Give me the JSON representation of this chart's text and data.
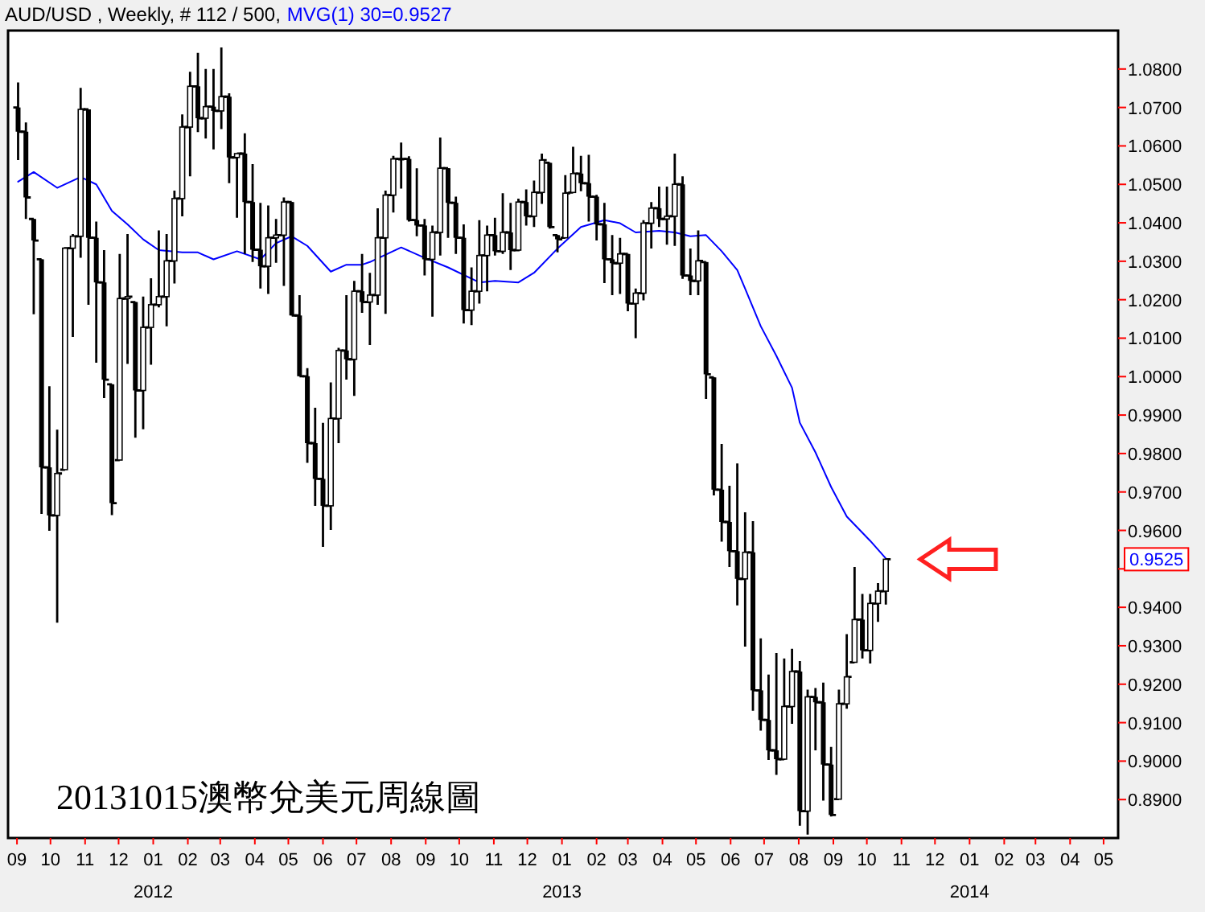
{
  "chart_data": {
    "type": "candlestick",
    "title": "AUD/USD , Weekly, # 112 / 500,",
    "legend": "top left",
    "xlim": [
      "2011-08-24",
      "2014-05-14"
    ],
    "ylim": [
      0.88,
      1.09
    ],
    "xticks": [
      {
        "value": "2011-09",
        "label": "09"
      },
      {
        "value": "2011-10",
        "label": "10"
      },
      {
        "value": "2011-11",
        "label": "11"
      },
      {
        "value": "2011-12",
        "label": "12"
      },
      {
        "value": "2012-01",
        "label": "01"
      },
      {
        "value": "2012-02",
        "label": "02"
      },
      {
        "value": "2012-03",
        "label": "03"
      },
      {
        "value": "2012-04",
        "label": "04"
      },
      {
        "value": "2012-05",
        "label": "05"
      },
      {
        "value": "2012-06",
        "label": "06"
      },
      {
        "value": "2012-07",
        "label": "07"
      },
      {
        "value": "2012-08",
        "label": "08"
      },
      {
        "value": "2012-09",
        "label": "09"
      },
      {
        "value": "2012-10",
        "label": "10"
      },
      {
        "value": "2012-11",
        "label": "11"
      },
      {
        "value": "2012-12",
        "label": "12"
      },
      {
        "value": "2013-01",
        "label": "01"
      },
      {
        "value": "2013-02",
        "label": "02"
      },
      {
        "value": "2013-03",
        "label": "03"
      },
      {
        "value": "2013-04",
        "label": "04"
      },
      {
        "value": "2013-05",
        "label": "05"
      },
      {
        "value": "2013-06",
        "label": "06"
      },
      {
        "value": "2013-07",
        "label": "07"
      },
      {
        "value": "2013-08",
        "label": "08"
      },
      {
        "value": "2013-09",
        "label": "09"
      },
      {
        "value": "2013-10",
        "label": "10"
      },
      {
        "value": "2013-11",
        "label": "11"
      },
      {
        "value": "2013-12",
        "label": "12"
      },
      {
        "value": "2014-01",
        "label": "01"
      },
      {
        "value": "2014-02",
        "label": "02"
      },
      {
        "value": "2014-03",
        "label": "03"
      },
      {
        "value": "2014-04",
        "label": "04"
      },
      {
        "value": "2014-05",
        "label": "05"
      }
    ],
    "yticks": [
      {
        "value": 0.89,
        "label": "0.8900"
      },
      {
        "value": 0.9,
        "label": "0.9000"
      },
      {
        "value": 0.91,
        "label": "0.9100"
      },
      {
        "value": 0.92,
        "label": "0.9200"
      },
      {
        "value": 0.93,
        "label": "0.9300"
      },
      {
        "value": 0.94,
        "label": "0.9400"
      },
      {
        "value": 0.95,
        "label": null
      },
      {
        "value": 0.96,
        "label": "0.9600"
      },
      {
        "value": 0.97,
        "label": "0.9700"
      },
      {
        "value": 0.98,
        "label": "0.9800"
      },
      {
        "value": 0.99,
        "label": "0.9900"
      },
      {
        "value": 1.0,
        "label": "1.0000"
      },
      {
        "value": 1.01,
        "label": "1.0100"
      },
      {
        "value": 1.02,
        "label": "1.0200"
      },
      {
        "value": 1.03,
        "label": "1.0300"
      },
      {
        "value": 1.04,
        "label": "1.0400"
      },
      {
        "value": 1.05,
        "label": "1.0500"
      },
      {
        "value": 1.06,
        "label": "1.0600"
      },
      {
        "value": 1.07,
        "label": "1.0700"
      },
      {
        "value": 1.08,
        "label": "1.0800"
      }
    ],
    "annotations": [
      "20131015澳幣兌美元周線圖",
      "0.9525",
      "2012",
      "2013",
      "2014"
    ],
    "color": "#000000",
    "x": [
      "2011-09-02",
      "2011-09-09",
      "2011-09-16",
      "2011-09-23",
      "2011-09-30",
      "2011-10-07",
      "2011-10-14",
      "2011-10-21",
      "2011-10-28",
      "2011-11-04",
      "2011-11-11",
      "2011-11-18",
      "2011-11-25",
      "2011-12-02",
      "2011-12-09",
      "2011-12-16",
      "2011-12-23",
      "2011-12-30",
      "2012-01-06",
      "2012-01-13",
      "2012-01-20",
      "2012-01-27",
      "2012-02-03",
      "2012-02-10",
      "2012-02-17",
      "2012-02-24",
      "2012-03-02",
      "2012-03-09",
      "2012-03-16",
      "2012-03-23",
      "2012-03-30",
      "2012-04-06",
      "2012-04-13",
      "2012-04-20",
      "2012-04-27",
      "2012-05-04",
      "2012-05-11",
      "2012-05-18",
      "2012-05-25",
      "2012-06-01",
      "2012-06-08",
      "2012-06-15",
      "2012-06-22",
      "2012-06-29",
      "2012-07-06",
      "2012-07-13",
      "2012-07-20",
      "2012-07-27",
      "2012-08-03",
      "2012-08-10",
      "2012-08-17",
      "2012-08-24",
      "2012-08-31",
      "2012-09-07",
      "2012-09-14",
      "2012-09-21",
      "2012-09-28",
      "2012-10-05",
      "2012-10-12",
      "2012-10-19",
      "2012-10-26",
      "2012-11-02",
      "2012-11-09",
      "2012-11-16",
      "2012-11-23",
      "2012-11-30",
      "2012-12-07",
      "2012-12-14",
      "2012-12-21",
      "2012-12-28",
      "2013-01-04",
      "2013-01-11",
      "2013-01-18",
      "2013-01-25",
      "2013-02-01",
      "2013-02-08",
      "2013-02-15",
      "2013-02-22",
      "2013-03-01",
      "2013-03-08",
      "2013-03-15",
      "2013-03-22",
      "2013-03-29",
      "2013-04-05",
      "2013-04-12",
      "2013-04-19",
      "2013-04-26",
      "2013-05-03",
      "2013-05-10",
      "2013-05-17",
      "2013-05-24",
      "2013-05-31",
      "2013-06-07",
      "2013-06-14",
      "2013-06-21",
      "2013-06-28",
      "2013-07-05",
      "2013-07-12",
      "2013-07-19",
      "2013-07-26",
      "2013-08-02",
      "2013-08-09",
      "2013-08-16",
      "2013-08-23",
      "2013-08-30",
      "2013-09-06",
      "2013-09-13",
      "2013-09-20",
      "2013-09-27",
      "2013-10-04",
      "2013-10-11",
      "2013-10-18"
    ],
    "ohlc": [
      [
        1.07,
        1.0765,
        1.0563,
        1.0637
      ],
      [
        1.0637,
        1.0661,
        1.041,
        1.0466
      ],
      [
        1.041,
        1.041,
        1.0162,
        1.0354
      ],
      [
        1.0305,
        1.0305,
        0.9643,
        0.9764
      ],
      [
        0.9764,
        0.9975,
        0.9599,
        0.9639
      ],
      [
        0.9639,
        0.9862,
        0.936,
        0.9748
      ],
      [
        0.9758,
        1.0337,
        0.9758,
        1.0334
      ],
      [
        1.0334,
        1.0371,
        1.0103,
        1.0365
      ],
      [
        1.0365,
        1.0751,
        1.0309,
        1.0695
      ],
      [
        1.0695,
        1.0695,
        1.0187,
        1.0361
      ],
      [
        1.0361,
        1.0403,
        1.0036,
        1.0245
      ],
      [
        1.0245,
        1.0329,
        0.9944,
        0.9992
      ],
      [
        0.998,
        0.998,
        0.964,
        0.9671
      ],
      [
        0.9783,
        1.0319,
        0.9783,
        1.0203
      ],
      [
        1.0203,
        1.0371,
        1.0033,
        1.0208
      ],
      [
        1.0194,
        1.0194,
        0.9841,
        0.9964
      ],
      [
        0.9964,
        1.0208,
        0.9863,
        1.0128
      ],
      [
        1.0128,
        1.0256,
        1.0031,
        1.0187
      ],
      [
        1.0187,
        1.038,
        1.018,
        1.0208
      ],
      [
        1.0208,
        1.0371,
        1.0131,
        1.0301
      ],
      [
        1.0301,
        1.0484,
        1.0242,
        1.0463
      ],
      [
        1.0463,
        1.0682,
        1.0417,
        1.0649
      ],
      [
        1.0649,
        1.0793,
        1.0521,
        1.0755
      ],
      [
        1.0755,
        1.0842,
        1.0636,
        1.0672
      ],
      [
        1.0672,
        1.08,
        1.0619,
        1.0702
      ],
      [
        1.0702,
        1.08,
        1.0591,
        1.0691
      ],
      [
        1.0691,
        1.0856,
        1.0644,
        1.0728
      ],
      [
        1.0728,
        1.0737,
        1.0503,
        1.057
      ],
      [
        1.057,
        1.058,
        1.0413,
        1.058
      ],
      [
        1.058,
        1.0633,
        1.0319,
        1.0454
      ],
      [
        1.0454,
        1.0553,
        1.0298,
        1.033
      ],
      [
        1.033,
        1.0452,
        1.0229,
        1.0287
      ],
      [
        1.0287,
        1.0445,
        1.0215,
        1.0361
      ],
      [
        1.0361,
        1.041,
        1.0296,
        1.0368
      ],
      [
        1.0368,
        1.0466,
        1.0236,
        1.0454
      ],
      [
        1.0454,
        1.0454,
        1.0159,
        1.0159
      ],
      [
        1.0159,
        1.0212,
        1.0001,
        1.0001
      ],
      [
        1.0001,
        1.0022,
        0.9776,
        0.9827
      ],
      [
        0.9827,
        0.9919,
        0.9664,
        0.9734
      ],
      [
        0.9734,
        0.988,
        0.9557,
        0.9664
      ],
      [
        0.9664,
        0.9985,
        0.9601,
        0.9891
      ],
      [
        0.9891,
        1.0075,
        0.9827,
        1.0068
      ],
      [
        1.0068,
        1.0212,
        0.9992,
        1.0045
      ],
      [
        1.0045,
        1.0249,
        0.995,
        1.0222
      ],
      [
        1.0222,
        1.0319,
        1.0166,
        1.0194
      ],
      [
        1.0194,
        1.027,
        1.0082,
        1.0212
      ],
      [
        1.0212,
        1.0438,
        1.0187,
        1.0361
      ],
      [
        1.0361,
        1.0484,
        1.0163,
        1.0472
      ],
      [
        1.0472,
        1.0574,
        1.0427,
        1.0566
      ],
      [
        1.0566,
        1.0609,
        1.0489,
        1.0566
      ],
      [
        1.0566,
        1.0573,
        1.0403,
        1.0407
      ],
      [
        1.0407,
        1.0542,
        1.0365,
        1.0393
      ],
      [
        1.0393,
        1.041,
        1.0263,
        1.0305
      ],
      [
        1.0305,
        1.0393,
        1.0156,
        1.0375
      ],
      [
        1.0375,
        1.0622,
        1.0315,
        1.0542
      ],
      [
        1.0542,
        1.0542,
        1.0361,
        1.0452
      ],
      [
        1.0452,
        1.0468,
        1.0319,
        1.0361
      ],
      [
        1.0361,
        1.0396,
        1.0138,
        1.0173
      ],
      [
        1.0173,
        1.0284,
        1.0134,
        1.0222
      ],
      [
        1.0222,
        1.0407,
        1.019,
        1.0315
      ],
      [
        1.0315,
        1.0393,
        1.0222,
        1.0368
      ],
      [
        1.0368,
        1.0413,
        1.0315,
        1.0326
      ],
      [
        1.0326,
        1.0477,
        1.0319,
        1.0375
      ],
      [
        1.0375,
        1.0452,
        1.0277,
        1.0329
      ],
      [
        1.0329,
        1.0463,
        1.0326,
        1.0454
      ],
      [
        1.0454,
        1.0487,
        1.0393,
        1.0417
      ],
      [
        1.0417,
        1.051,
        1.0389,
        1.0479
      ],
      [
        1.0479,
        1.058,
        1.0449,
        1.0563
      ],
      [
        1.0556,
        1.0556,
        1.0385,
        1.0389
      ],
      [
        1.0368,
        1.0368,
        1.0323,
        1.0357
      ],
      [
        1.0361,
        1.0524,
        1.0361,
        1.0477
      ],
      [
        1.0479,
        1.0598,
        1.0479,
        1.0528
      ],
      [
        1.0528,
        1.0574,
        1.0482,
        1.0503
      ],
      [
        1.0503,
        1.0577,
        1.0403,
        1.0468
      ],
      [
        1.0468,
        1.0473,
        1.0354,
        1.0396
      ],
      [
        1.0396,
        1.0452,
        1.0243,
        1.0305
      ],
      [
        1.0305,
        1.0368,
        1.0212,
        1.0295
      ],
      [
        1.0295,
        1.0361,
        1.0215,
        1.0319
      ],
      [
        1.0319,
        1.0319,
        1.017,
        1.019
      ],
      [
        1.019,
        1.0229,
        1.01,
        1.0217
      ],
      [
        1.0217,
        1.0407,
        1.0198,
        1.0399
      ],
      [
        1.0399,
        1.0454,
        1.0333,
        1.0438
      ],
      [
        1.0438,
        1.0494,
        1.0389,
        1.041
      ],
      [
        1.041,
        1.0494,
        1.0343,
        1.0417
      ],
      [
        1.0417,
        1.058,
        1.034,
        1.05
      ],
      [
        1.05,
        1.0521,
        1.0254,
        1.0263
      ],
      [
        1.0263,
        1.0333,
        1.0212,
        1.0249
      ],
      [
        1.0249,
        1.038,
        1.0212,
        1.0301
      ],
      [
        1.0298,
        1.0298,
        0.9942,
        1.0006
      ],
      [
        0.9998,
        0.9998,
        0.9691,
        0.9706
      ],
      [
        0.9706,
        0.9825,
        0.9571,
        0.9622
      ],
      [
        0.9622,
        0.9716,
        0.9505,
        0.9546
      ],
      [
        0.9546,
        0.9774,
        0.9405,
        0.9474
      ],
      [
        0.9474,
        0.9647,
        0.9298,
        0.9543
      ],
      [
        0.9543,
        0.9624,
        0.9131,
        0.9184
      ],
      [
        0.9184,
        0.9319,
        0.9079,
        0.9107
      ],
      [
        0.9107,
        0.9225,
        0.9003,
        0.9028
      ],
      [
        0.9028,
        0.9281,
        0.8964,
        0.9005
      ],
      [
        0.9005,
        0.9267,
        0.9003,
        0.9142
      ],
      [
        0.9142,
        0.9292,
        0.9097,
        0.9233
      ],
      [
        0.9233,
        0.926,
        0.8832,
        0.887
      ],
      [
        0.887,
        0.9186,
        0.8809,
        0.9167
      ],
      [
        0.9167,
        0.919,
        0.9028,
        0.9153
      ],
      [
        0.9153,
        0.9204,
        0.8897,
        0.8991
      ],
      [
        0.8991,
        0.9037,
        0.8856,
        0.886
      ],
      [
        0.8901,
        0.9186,
        0.8901,
        0.9149
      ],
      [
        0.9149,
        0.933,
        0.9136,
        0.9219
      ],
      [
        0.9257,
        0.9505,
        0.9257,
        0.9368
      ],
      [
        0.9368,
        0.9435,
        0.9267,
        0.9288
      ],
      [
        0.9288,
        0.9435,
        0.9254,
        0.941
      ],
      [
        0.941,
        0.9463,
        0.9362,
        0.9442
      ],
      [
        0.9442,
        0.9527,
        0.9407,
        0.9525
      ]
    ],
    "series": [
      {
        "type": "line",
        "name": "MVG(1) 30=0.9527",
        "color": "#0000ff",
        "x": [
          "2011-09-02",
          "2011-09-16",
          "2011-10-07",
          "2011-10-28",
          "2011-11-11",
          "2011-11-25",
          "2011-12-09",
          "2011-12-23",
          "2012-01-06",
          "2012-01-27",
          "2012-02-10",
          "2012-02-24",
          "2012-03-16",
          "2012-04-06",
          "2012-04-20",
          "2012-05-04",
          "2012-05-18",
          "2012-06-08",
          "2012-06-22",
          "2012-07-06",
          "2012-07-13",
          "2012-08-10",
          "2012-08-31",
          "2012-09-21",
          "2012-10-19",
          "2012-11-02",
          "2012-11-23",
          "2012-12-07",
          "2012-12-28",
          "2013-01-18",
          "2013-02-08",
          "2013-02-22",
          "2013-03-08",
          "2013-03-29",
          "2013-04-12",
          "2013-04-26",
          "2013-05-10",
          "2013-05-24",
          "2013-06-07",
          "2013-06-14",
          "2013-06-28",
          "2013-07-12",
          "2013-07-26",
          "2013-08-02",
          "2013-08-16",
          "2013-08-30",
          "2013-09-13",
          "2013-10-04",
          "2013-10-18"
        ],
        "values": [
          1.0507,
          1.0532,
          1.0491,
          1.0519,
          1.05,
          1.0431,
          1.0396,
          1.0357,
          1.0329,
          1.0323,
          1.0323,
          1.0305,
          1.0326,
          1.0305,
          1.0347,
          1.0365,
          1.034,
          1.0273,
          1.0291,
          1.0291,
          1.0298,
          1.0336,
          1.0309,
          1.0284,
          1.0245,
          1.0249,
          1.0245,
          1.027,
          1.0333,
          1.0389,
          1.0407,
          1.0399,
          1.0375,
          1.0379,
          1.0375,
          1.0365,
          1.0368,
          1.0326,
          1.0277,
          1.0229,
          1.0131,
          1.0054,
          0.9971,
          0.988,
          0.9803,
          0.9713,
          0.9636,
          0.9573,
          0.9527
        ]
      }
    ]
  }
}
